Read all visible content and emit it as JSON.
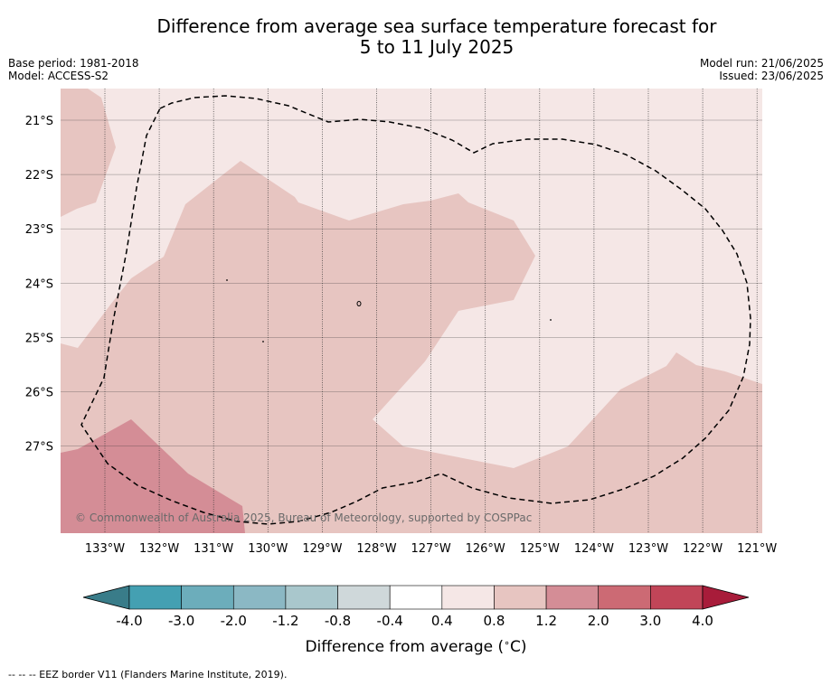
{
  "header": {
    "title_line1": "Difference from average sea surface temperature forecast for",
    "title_line2": "5 to 11 July 2025",
    "base_period": "Base period: 1981-2018",
    "model": "Model: ACCESS-S2",
    "model_run": "Model run: 21/06/2025",
    "issued": "Issued: 23/06/2025"
  },
  "map": {
    "lat_labels": [
      "21°S",
      "22°S",
      "23°S",
      "24°S",
      "25°S",
      "26°S",
      "27°S"
    ],
    "lon_labels": [
      "133°W",
      "132°W",
      "131°W",
      "130°W",
      "129°W",
      "128°W",
      "127°W",
      "126°W",
      "125°W",
      "124°W",
      "123°W",
      "122°W",
      "121°W"
    ],
    "copyright": "© Commonwealth of Australia 2025, Bureau of Meteorology, supported by COSPPac",
    "colors": {
      "band_0_4_to_0_8": "#f5e7e6",
      "band_0_8_to_1_2": "#e7c5c1",
      "band_1_2_to_2_0": "#d48d96",
      "eez_line": "#000000",
      "grid": "#333333"
    }
  },
  "colorbar": {
    "tick_labels": [
      "-4.0",
      "-3.0",
      "-2.0",
      "-1.2",
      "-0.8",
      "-0.4",
      "0.4",
      "0.8",
      "1.2",
      "2.0",
      "3.0",
      "4.0"
    ],
    "colors": [
      "#397c89",
      "#44a0b2",
      "#6cadbb",
      "#8bb8c4",
      "#a9c7cc",
      "#cfd8da",
      "#ffffff",
      "#f5e7e6",
      "#e7c5c1",
      "#d48d96",
      "#cc6a74",
      "#c14558",
      "#a81c3a"
    ],
    "label": "Difference from average (",
    "label_degree": "∘",
    "label_unit": "C)"
  },
  "footer": {
    "legend": "--  --  -- EEZ border V11 (Flanders Marine Institute, 2019)."
  }
}
